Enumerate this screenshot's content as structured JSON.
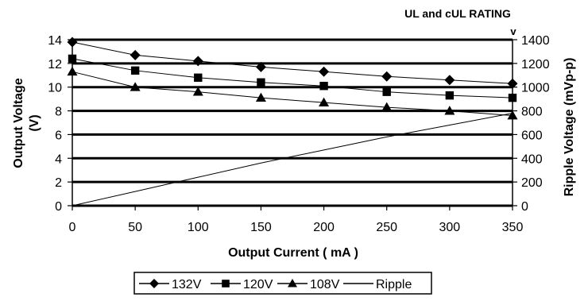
{
  "chart_data": {
    "type": "line",
    "title": "UL and cUL RATING",
    "title_suffix": "v",
    "xlabel": "Output Current ( mA )",
    "ylabel": "Output Voltage\n(V)",
    "y2label": "Ripple Voltage (mVp-p)",
    "x": [
      0,
      50,
      100,
      150,
      200,
      250,
      300,
      350
    ],
    "xlim": [
      0,
      350
    ],
    "ylim": [
      0,
      14
    ],
    "y2lim": [
      0,
      1400
    ],
    "xticks": [
      0,
      50,
      100,
      150,
      200,
      250,
      300,
      350
    ],
    "yticks": [
      0,
      2,
      4,
      6,
      8,
      10,
      12,
      14
    ],
    "y2ticks": [
      0,
      200,
      400,
      600,
      800,
      1000,
      1200,
      1400
    ],
    "grid": "horizontal",
    "legend_position": "bottom",
    "series": [
      {
        "name": "132V",
        "marker": "diamond",
        "axis": "left",
        "values": [
          13.8,
          12.7,
          12.2,
          11.7,
          11.3,
          10.9,
          10.6,
          10.3
        ]
      },
      {
        "name": "120V",
        "marker": "square",
        "axis": "left",
        "values": [
          12.4,
          11.4,
          10.8,
          10.4,
          10.1,
          9.6,
          9.3,
          9.1
        ]
      },
      {
        "name": "108V",
        "marker": "triangle",
        "axis": "left",
        "values": [
          11.3,
          10.0,
          9.6,
          9.1,
          8.7,
          8.3,
          8.0,
          7.6
        ]
      },
      {
        "name": "Ripple",
        "marker": "none",
        "axis": "right",
        "values": [
          0,
          120,
          240,
          360,
          470,
          580,
          680,
          780
        ]
      }
    ]
  }
}
